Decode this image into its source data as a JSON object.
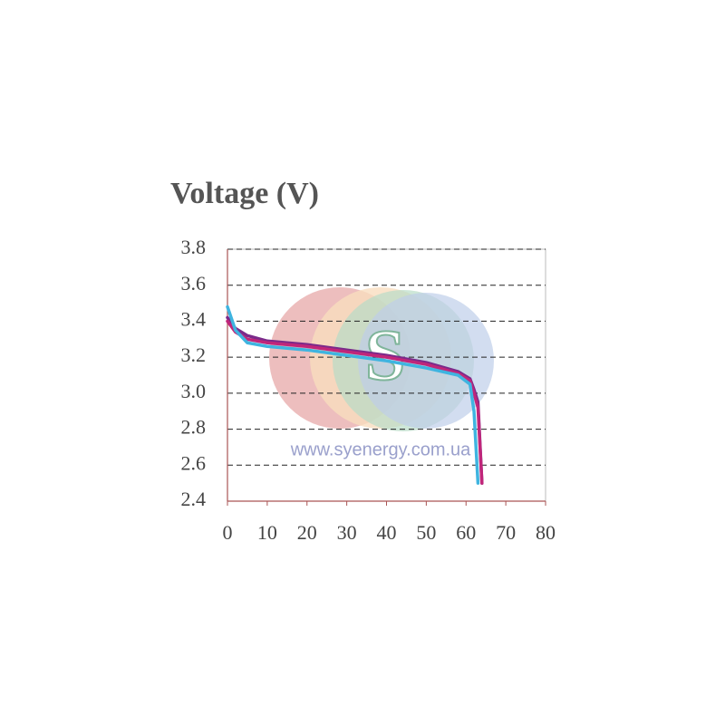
{
  "chart_data": {
    "type": "line",
    "title": "Voltage (V)",
    "watermark": "www.syenergy.com.ua",
    "logo": "S",
    "x": [
      0,
      2,
      5,
      10,
      20,
      30,
      40,
      50,
      58,
      61,
      62,
      63,
      64
    ],
    "series": [
      {
        "color": "#7b2a8a",
        "values": [
          3.42,
          3.36,
          3.32,
          3.29,
          3.27,
          3.24,
          3.21,
          3.17,
          3.12,
          3.08,
          3.02,
          2.95,
          2.5
        ]
      },
      {
        "color": "#c0267a",
        "values": [
          3.4,
          3.34,
          3.3,
          3.28,
          3.26,
          3.23,
          3.2,
          3.16,
          3.11,
          3.07,
          3.0,
          2.92,
          2.5
        ]
      },
      {
        "color": "#3fb4e0",
        "values": [
          3.48,
          3.35,
          3.28,
          3.26,
          3.24,
          3.21,
          3.18,
          3.14,
          3.1,
          3.05,
          2.9,
          2.5,
          null
        ]
      }
    ],
    "xlim": [
      0,
      80
    ],
    "xticks": [
      0,
      10,
      20,
      30,
      40,
      50,
      60,
      70,
      80
    ],
    "ylim": [
      2.4,
      3.8
    ],
    "yticks": [
      2.4,
      2.6,
      2.8,
      {
        "value": 3,
        "label": "3.0"
      },
      3.2,
      3.4,
      3.6,
      3.8
    ],
    "grid": true
  }
}
